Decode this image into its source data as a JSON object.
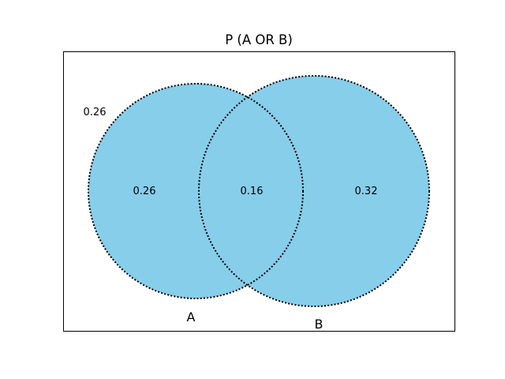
{
  "title": "P (A OR B)",
  "sets": [
    {
      "name": "A",
      "label": "A"
    },
    {
      "name": "B",
      "label": "B"
    }
  ],
  "regions": {
    "a_only": "0.26",
    "intersection": "0.16",
    "b_only": "0.32",
    "outside": "0.26"
  },
  "colors": {
    "fill": "#87CEEB",
    "outline": "#000000",
    "frame": "#000000"
  }
}
